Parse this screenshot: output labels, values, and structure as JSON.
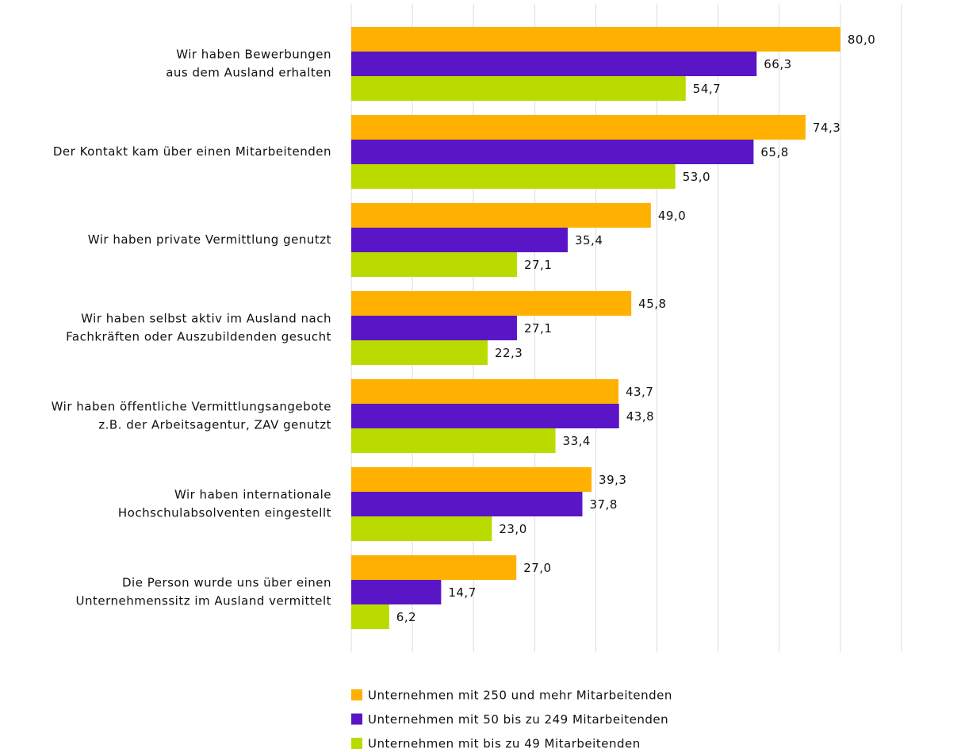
{
  "chart_data": {
    "type": "hbar",
    "categories": [
      [
        "Wir haben Bewerbungen",
        "aus dem Ausland erhalten"
      ],
      [
        "Der Kontakt kam über einen Mitarbeitenden"
      ],
      [
        "Wir haben private Vermittlung genutzt"
      ],
      [
        "Wir haben selbst aktiv im Ausland nach",
        "Fachkräften oder Auszubildenden gesucht"
      ],
      [
        "Wir haben öffentliche Vermittlungsangebote",
        "z.B. der Arbeitsagentur, ZAV genutzt"
      ],
      [
        "Wir haben internationale",
        "Hochschulabsolventen eingestellt"
      ],
      [
        "Die Person wurde uns über einen",
        "Unternehmenssitz im Ausland vermittelt"
      ]
    ],
    "series": [
      {
        "name": "Unternehmen mit 250 und mehr Mitarbeitenden",
        "color": "#ffb000",
        "values": [
          80.0,
          74.3,
          49.0,
          45.8,
          43.7,
          39.3,
          27.0
        ],
        "value_labels": [
          "80,0",
          "74,3",
          "49,0",
          "45,8",
          "43,7",
          "39,3",
          "27,0"
        ]
      },
      {
        "name": "Unternehmen mit 50 bis zu 249 Mitarbeitenden",
        "color": "#5a16c6",
        "values": [
          66.3,
          65.8,
          35.4,
          27.1,
          43.8,
          37.8,
          14.7
        ],
        "value_labels": [
          "66,3",
          "65,8",
          "35,4",
          "27,1",
          "43,8",
          "37,8",
          "14,7"
        ]
      },
      {
        "name": "Unternehmen mit bis zu 49 Mitarbeitenden",
        "color": "#badb00",
        "values": [
          54.7,
          53.0,
          27.1,
          22.3,
          33.4,
          23.0,
          6.2
        ],
        "value_labels": [
          "54,7",
          "53,0",
          "27,1",
          "22,3",
          "33,4",
          "23,0",
          "6,2"
        ]
      }
    ],
    "xlim": [
      0,
      90
    ],
    "xticks": [
      0,
      10,
      20,
      30,
      40,
      50,
      60,
      70,
      80,
      90
    ],
    "grid": true,
    "legend": "bottom"
  }
}
